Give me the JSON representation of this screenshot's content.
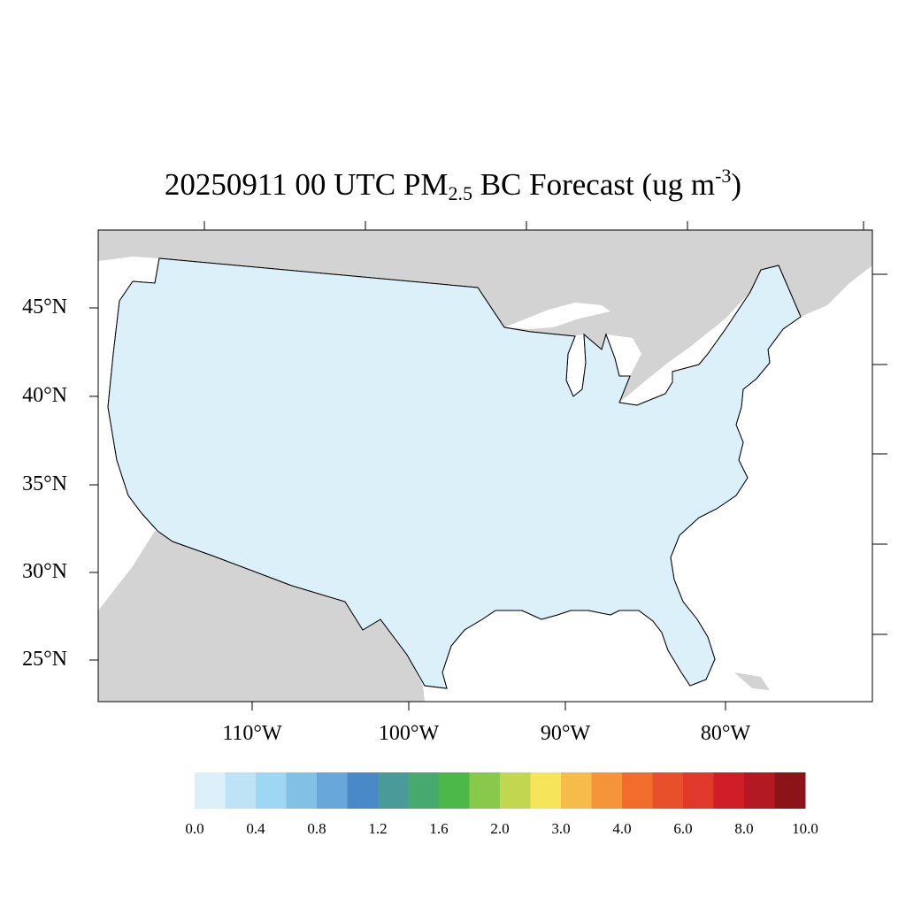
{
  "title": {
    "prefix": "20250911 00 UTC PM",
    "subscript": "2.5",
    "middle": " BC Forecast (ug m",
    "superscript": "-3",
    "suffix": ")"
  },
  "lat_labels": [
    "45°N",
    "40°N",
    "35°N",
    "30°N",
    "25°N"
  ],
  "lon_labels": [
    "110°W",
    "100°W",
    "90°W",
    "80°W"
  ],
  "colorbar": {
    "colors": [
      "#dcf0fa",
      "#bfe3f6",
      "#9dd7f3",
      "#82c0e6",
      "#68a7da",
      "#4a89c8",
      "#4a9a9a",
      "#47a96e",
      "#4cb84a",
      "#88c84a",
      "#c3d650",
      "#f6e45a",
      "#f6bc4a",
      "#f6943a",
      "#f26c2c",
      "#e8502c",
      "#e0382a",
      "#d01e28",
      "#b41820",
      "#8c1418"
    ],
    "labels": [
      "0.0",
      "0.4",
      "0.8",
      "1.2",
      "1.6",
      "2.0",
      "3.0",
      "4.0",
      "6.0",
      "8.0",
      "10.0"
    ]
  },
  "map_colors": {
    "land_outside": "#d3d3d3",
    "water": "#ffffff",
    "background": "#dcf0fa"
  }
}
